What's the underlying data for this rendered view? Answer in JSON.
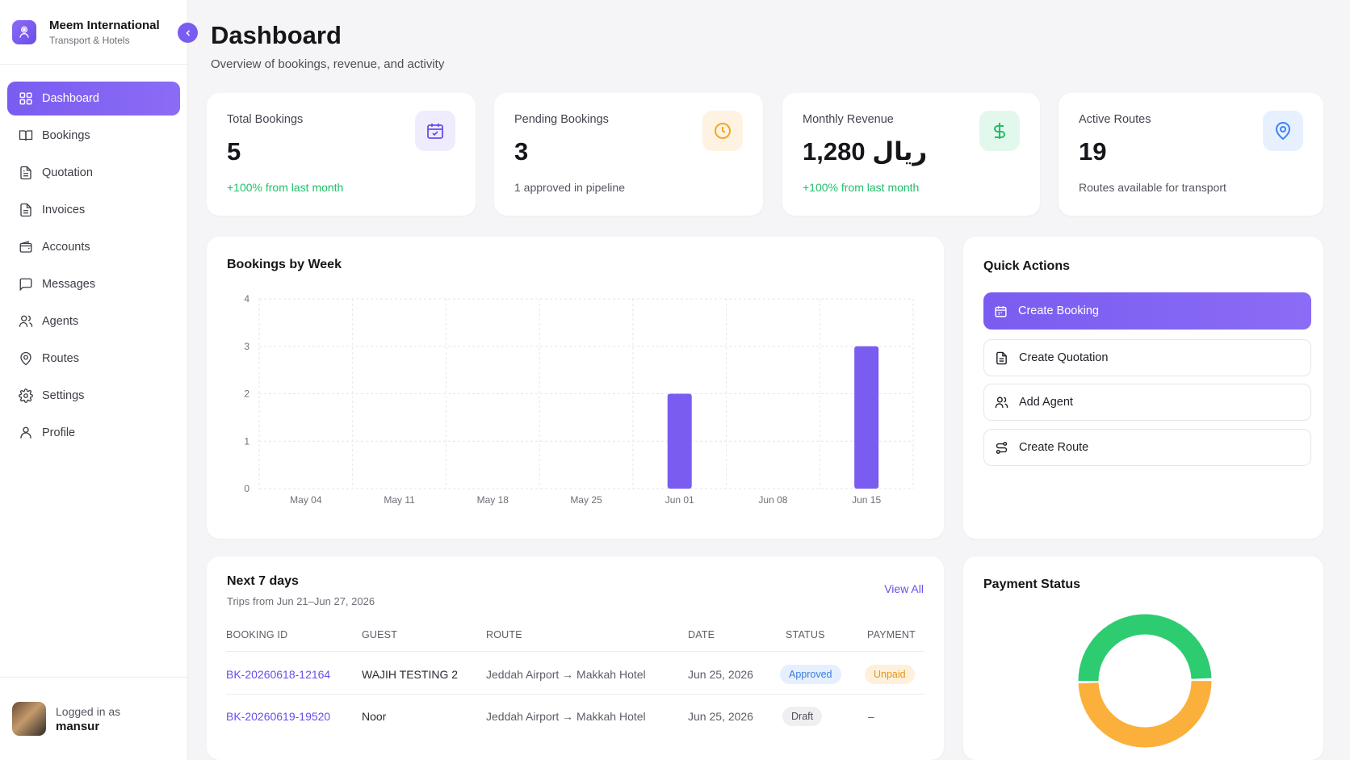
{
  "brand": {
    "name": "Meem International",
    "subtitle": "Transport & Hotels"
  },
  "sidebar": {
    "items": [
      {
        "label": "Dashboard",
        "icon": "grid-icon",
        "active": true
      },
      {
        "label": "Bookings",
        "icon": "book-icon"
      },
      {
        "label": "Quotation",
        "icon": "file-text-icon"
      },
      {
        "label": "Invoices",
        "icon": "file-text-icon"
      },
      {
        "label": "Accounts",
        "icon": "wallet-icon"
      },
      {
        "label": "Messages",
        "icon": "message-square-icon"
      },
      {
        "label": "Agents",
        "icon": "users-icon"
      },
      {
        "label": "Routes",
        "icon": "map-pin-icon"
      },
      {
        "label": "Settings",
        "icon": "gear-icon"
      },
      {
        "label": "Profile",
        "icon": "user-icon"
      }
    ]
  },
  "user": {
    "label": "Logged in as",
    "name": "mansur"
  },
  "header": {
    "title": "Dashboard",
    "subtitle": "Overview of bookings, revenue, and activity"
  },
  "stats": [
    {
      "label": "Total Bookings",
      "value": "5",
      "note": "+100% from last month",
      "icon": "calendar-check-icon",
      "accent": "#6a4de8"
    },
    {
      "label": "Pending Bookings",
      "value": "3",
      "note": "1 approved in pipeline",
      "icon": "clock-icon",
      "accent": "#f5a623"
    },
    {
      "label": "Monthly Revenue",
      "value": "ریال 1,280",
      "note": "+100% from last month",
      "icon": "dollar-icon",
      "accent": "#1fbf6a"
    },
    {
      "label": "Active Routes",
      "value": "19",
      "note": "Routes available for transport",
      "icon": "map-pin-icon",
      "accent": "#3b82f6"
    }
  ],
  "chart_title": "Bookings by Week",
  "chart_data": {
    "type": "bar",
    "categories": [
      "May 04",
      "May 11",
      "May 18",
      "May 25",
      "Jun 01",
      "Jun 08",
      "Jun 15"
    ],
    "values": [
      0,
      0,
      0,
      0,
      2,
      0,
      3
    ],
    "ylim": [
      0,
      4
    ],
    "yticks": [
      "0",
      "1",
      "2",
      "3",
      "4"
    ],
    "grid": true,
    "color": "#7a5cf0"
  },
  "quick_actions": {
    "title": "Quick Actions",
    "buttons": [
      {
        "label": "Create Booking",
        "icon": "calendar-icon"
      },
      {
        "label": "Create Quotation",
        "icon": "file-text-icon"
      },
      {
        "label": "Add Agent",
        "icon": "users-icon"
      },
      {
        "label": "Create Route",
        "icon": "route-icon"
      }
    ]
  },
  "upcoming": {
    "title": "Next 7 days",
    "subtitle": "Trips from Jun 21–Jun 27, 2026",
    "view_all": "View All",
    "columns": [
      "BOOKING ID",
      "GUEST",
      "ROUTE",
      "DATE",
      "STATUS",
      "PAYMENT"
    ],
    "rows": [
      {
        "id": "BK-20260618-12164",
        "guest": "WAJIH TESTING 2",
        "route": "Jeddah Airport → Makkah Hotel",
        "date": "Jun 25, 2026",
        "status": "Approved",
        "payment": "Unpaid"
      },
      {
        "id": "BK-20260619-19520",
        "guest": "Noor",
        "route": "Jeddah Airport → Makkah Hotel",
        "date": "Jun 25, 2026",
        "status": "Draft",
        "payment": "–"
      }
    ]
  },
  "payment_status": {
    "title": "Payment Status",
    "segments": [
      {
        "fraction": 0.5,
        "color": "#2ecc71"
      },
      {
        "fraction": 0.5,
        "color": "#fbb03b"
      }
    ]
  }
}
